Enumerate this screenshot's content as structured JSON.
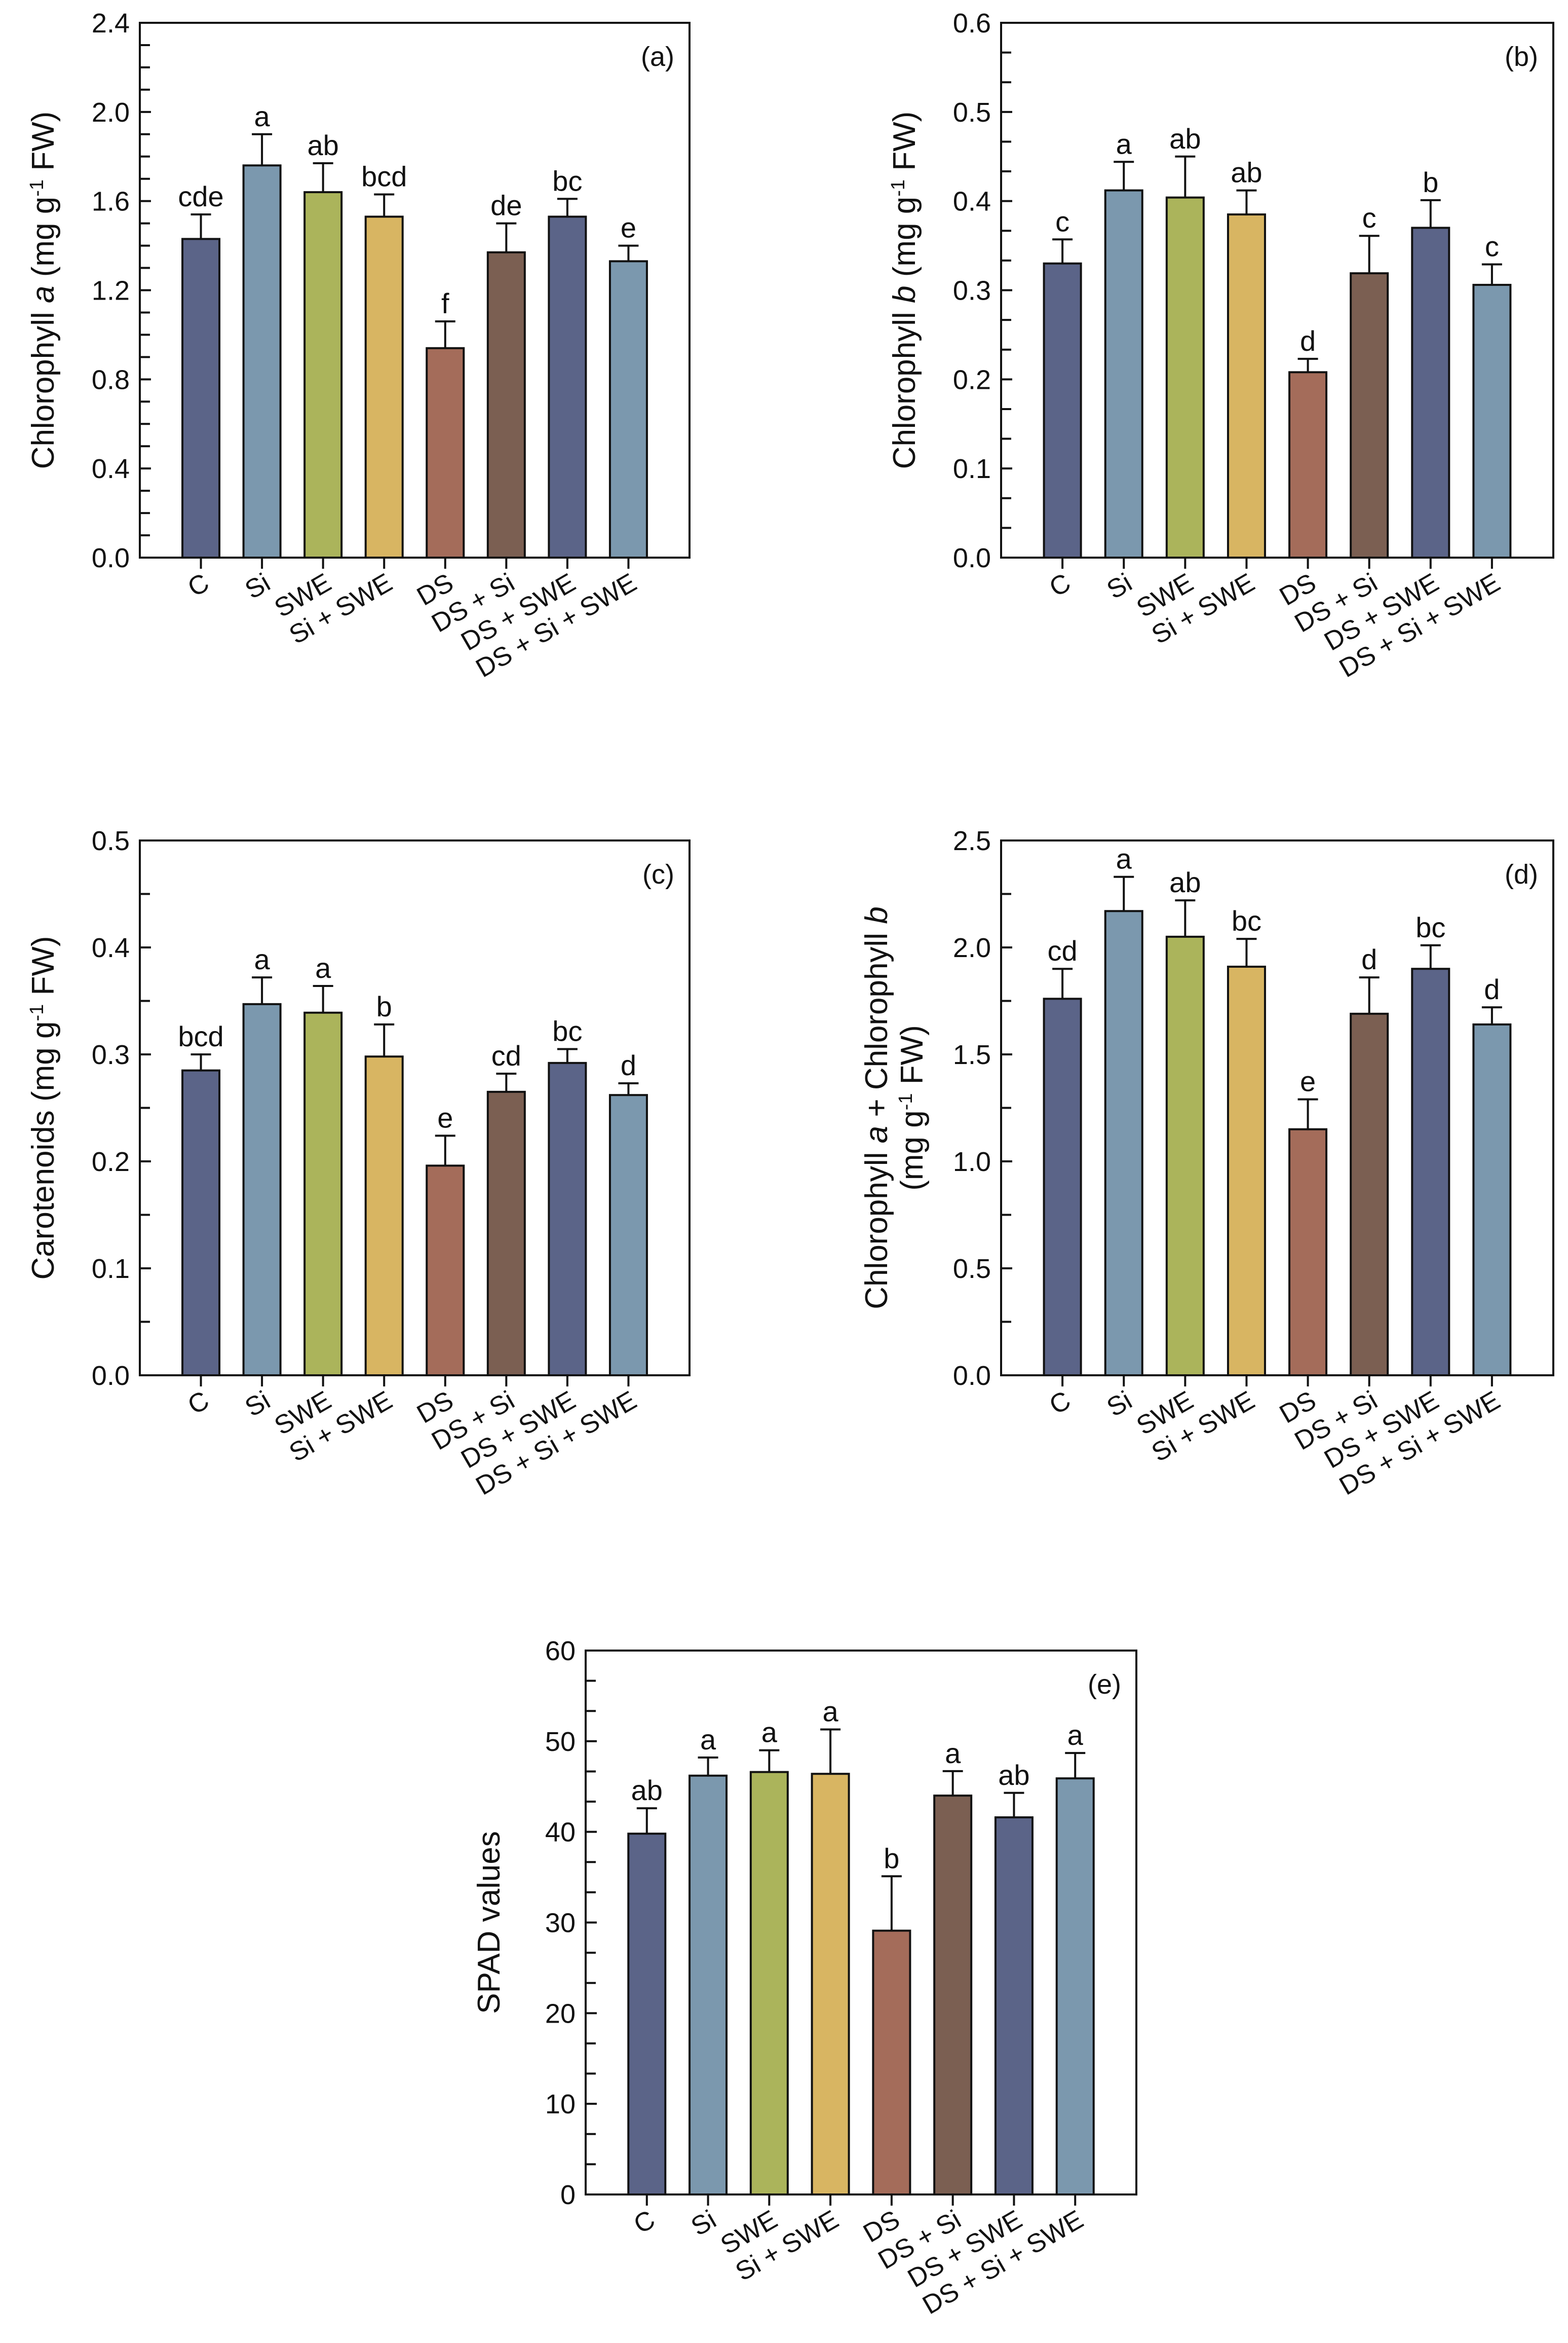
{
  "chart_data": [
    {
      "type": "bar",
      "panel_label": "(a)",
      "ylabel_lines": [
        [
          {
            "t": "Chlorophyll "
          },
          {
            "t": "a",
            "style": "italic"
          },
          {
            "t": " (mg g"
          },
          {
            "t": "-1",
            "style": "sup"
          },
          {
            "t": " FW)"
          }
        ]
      ],
      "categories": [
        "C",
        "Si",
        "SWE",
        "Si + SWE",
        "DS",
        "DS + Si",
        "DS + SWE",
        "DS + Si + SWE"
      ],
      "values": [
        1.43,
        1.76,
        1.64,
        1.53,
        0.94,
        1.37,
        1.53,
        1.33
      ],
      "errors": [
        0.11,
        0.14,
        0.13,
        0.1,
        0.12,
        0.13,
        0.08,
        0.07
      ],
      "letters": [
        "cde",
        "a",
        "ab",
        "bcd",
        "f",
        "de",
        "bc",
        "e"
      ],
      "ylim": [
        0,
        2.4
      ],
      "yticks": [
        "0.0",
        "0.4",
        "0.8",
        "1.2",
        "1.6",
        "2.0",
        "2.4"
      ],
      "minor_divisions": 4
    },
    {
      "type": "bar",
      "panel_label": "(b)",
      "ylabel_lines": [
        [
          {
            "t": "Chlorophyll "
          },
          {
            "t": "b",
            "style": "italic"
          },
          {
            "t": " (mg g"
          },
          {
            "t": "-1",
            "style": "sup"
          },
          {
            "t": " FW)"
          }
        ]
      ],
      "categories": [
        "C",
        "Si",
        "SWE",
        "Si + SWE",
        "DS",
        "DS + Si",
        "DS + SWE",
        "DS + Si + SWE"
      ],
      "values": [
        0.33,
        0.412,
        0.404,
        0.385,
        0.208,
        0.319,
        0.37,
        0.306
      ],
      "errors": [
        0.027,
        0.032,
        0.046,
        0.027,
        0.015,
        0.042,
        0.031,
        0.023
      ],
      "letters": [
        "c",
        "a",
        "ab",
        "ab",
        "d",
        "c",
        "b",
        "c"
      ],
      "ylim": [
        0,
        0.6
      ],
      "yticks": [
        "0.0",
        "0.1",
        "0.2",
        "0.3",
        "0.4",
        "0.5",
        "0.6"
      ],
      "minor_divisions": 3
    },
    {
      "type": "bar",
      "panel_label": "(c)",
      "ylabel_lines": [
        [
          {
            "t": "Carotenoids (mg g"
          },
          {
            "t": "-1",
            "style": "sup"
          },
          {
            "t": " FW)"
          }
        ]
      ],
      "categories": [
        "C",
        "Si",
        "SWE",
        "Si + SWE",
        "DS",
        "DS + Si",
        "DS + SWE",
        "DS + Si + SWE"
      ],
      "values": [
        0.285,
        0.347,
        0.339,
        0.298,
        0.196,
        0.265,
        0.292,
        0.262
      ],
      "errors": [
        0.015,
        0.025,
        0.025,
        0.03,
        0.028,
        0.017,
        0.013,
        0.011
      ],
      "letters": [
        "bcd",
        "a",
        "a",
        "b",
        "e",
        "cd",
        "bc",
        "d"
      ],
      "ylim": [
        0,
        0.5
      ],
      "yticks": [
        "0.0",
        "0.1",
        "0.2",
        "0.3",
        "0.4",
        "0.5"
      ],
      "minor_divisions": 2
    },
    {
      "type": "bar",
      "panel_label": "(d)",
      "ylabel_lines": [
        [
          {
            "t": "Chlorophyll "
          },
          {
            "t": "a",
            "style": "italic"
          },
          {
            "t": " + Chlorophyll "
          },
          {
            "t": "b",
            "style": "italic"
          }
        ],
        [
          {
            "t": "(mg g"
          },
          {
            "t": "-1",
            "style": "sup"
          },
          {
            "t": " FW)"
          }
        ]
      ],
      "categories": [
        "C",
        "Si",
        "SWE",
        "Si + SWE",
        "DS",
        "DS + Si",
        "DS + SWE",
        "DS + Si + SWE"
      ],
      "values": [
        1.76,
        2.17,
        2.05,
        1.91,
        1.15,
        1.69,
        1.9,
        1.64
      ],
      "errors": [
        0.14,
        0.16,
        0.17,
        0.13,
        0.14,
        0.17,
        0.11,
        0.08
      ],
      "letters": [
        "cd",
        "a",
        "ab",
        "bc",
        "e",
        "d",
        "bc",
        "d"
      ],
      "ylim": [
        0,
        2.5
      ],
      "yticks": [
        "0.0",
        "0.5",
        "1.0",
        "1.5",
        "2.0",
        "2.5"
      ],
      "minor_divisions": 2
    },
    {
      "type": "bar",
      "panel_label": "(e)",
      "ylabel_lines": [
        [
          {
            "t": "SPAD values"
          }
        ]
      ],
      "categories": [
        "C",
        "Si",
        "SWE",
        "Si + SWE",
        "DS",
        "DS + Si",
        "DS + SWE",
        "DS + Si + SWE"
      ],
      "values": [
        39.8,
        46.2,
        46.6,
        46.4,
        29.1,
        44.0,
        41.6,
        45.9
      ],
      "errors": [
        2.8,
        2.0,
        2.4,
        4.9,
        6.0,
        2.7,
        2.7,
        2.8
      ],
      "letters": [
        "ab",
        "a",
        "a",
        "a",
        "b",
        "a",
        "ab",
        "a"
      ],
      "ylim": [
        0,
        60
      ],
      "yticks": [
        "0",
        "10",
        "20",
        "30",
        "40",
        "50",
        "60"
      ],
      "minor_divisions": 3
    }
  ],
  "colors": [
    "#5b6488",
    "#7b98ae",
    "#abb45b",
    "#d8b562",
    "#a46c5a",
    "#7b5f52",
    "#5b6488",
    "#7b98ae"
  ],
  "ylabel_color": "#111111"
}
